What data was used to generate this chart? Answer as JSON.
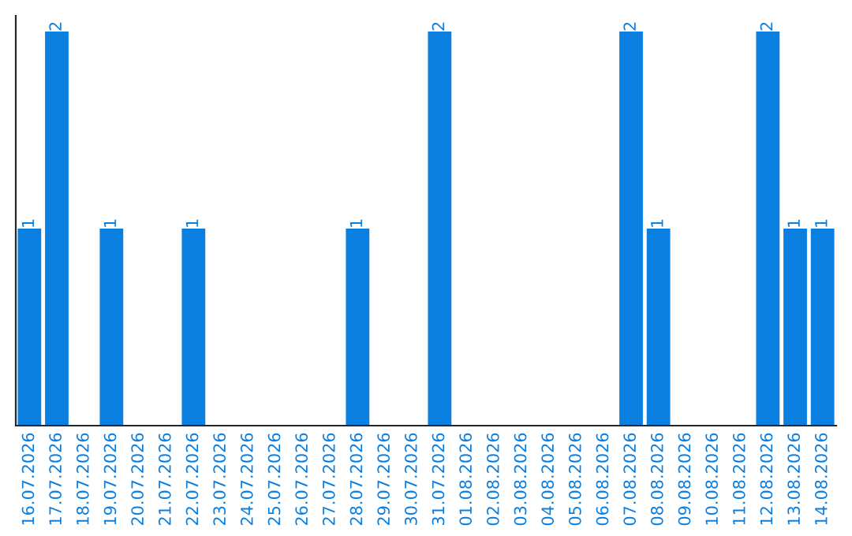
{
  "chart_data": {
    "type": "bar",
    "categories": [
      "16.07.2026",
      "17.07.2026",
      "18.07.2026",
      "19.07.2026",
      "20.07.2026",
      "21.07.2026",
      "22.07.2026",
      "23.07.2026",
      "24.07.2026",
      "25.07.2026",
      "26.07.2026",
      "27.07.2026",
      "28.07.2026",
      "29.07.2026",
      "30.07.2026",
      "31.07.2026",
      "01.08.2026",
      "02.08.2026",
      "03.08.2026",
      "04.08.2026",
      "05.08.2026",
      "06.08.2026",
      "07.08.2026",
      "08.08.2026",
      "09.08.2026",
      "10.08.2026",
      "11.08.2026",
      "12.08.2026",
      "13.08.2026",
      "14.08.2026"
    ],
    "values": [
      1,
      2,
      0,
      1,
      0,
      0,
      1,
      0,
      0,
      0,
      0,
      0,
      1,
      0,
      0,
      2,
      0,
      0,
      0,
      0,
      0,
      0,
      2,
      1,
      0,
      0,
      0,
      2,
      1,
      1
    ],
    "value_labels": [
      "1",
      "2",
      null,
      "1",
      null,
      null,
      "1",
      null,
      null,
      null,
      null,
      null,
      "1",
      null,
      null,
      "2",
      null,
      null,
      null,
      null,
      null,
      null,
      "2",
      "1",
      null,
      null,
      null,
      "2",
      "1",
      "1"
    ],
    "color": "#0a7fe0",
    "ylim": [
      0,
      2.08
    ],
    "tick_labels": "x",
    "grid": false,
    "legend": false
  }
}
